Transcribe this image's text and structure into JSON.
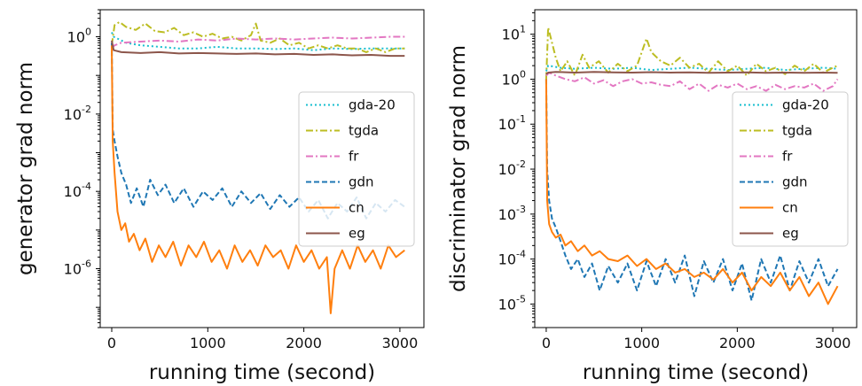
{
  "chart_data": [
    {
      "type": "line",
      "xlabel": "running time (second)",
      "ylabel": "generator grad norm",
      "yscale": "log",
      "xlim": [
        -120,
        3250
      ],
      "ylim": [
        3e-08,
        5
      ],
      "xticks": [
        0,
        1000,
        2000,
        3000
      ],
      "xtick_labels": [
        "0",
        "1000",
        "2000",
        "3000"
      ],
      "yticks": [
        1e-06,
        0.0001,
        0.01,
        1
      ],
      "ytick_labels": [
        [
          "10",
          "-6"
        ],
        [
          "10",
          "-4"
        ],
        [
          "10",
          "-2"
        ],
        [
          "10",
          "0"
        ]
      ],
      "legend_position": "center-right",
      "grid": false,
      "series": [
        {
          "name": "gda-20",
          "color": "#17becf",
          "dash": "2,3",
          "x": [
            0,
            20,
            150,
            300,
            500,
            700,
            900,
            1100,
            1300,
            1500,
            1700,
            1900,
            2100,
            2300,
            2500,
            2700,
            2900,
            3050
          ],
          "y": [
            1.3,
            1.0,
            0.7,
            0.6,
            0.55,
            0.5,
            0.5,
            0.55,
            0.5,
            0.5,
            0.48,
            0.5,
            0.45,
            0.5,
            0.48,
            0.5,
            0.5,
            0.5
          ]
        },
        {
          "name": "tgda",
          "color": "#bcbd22",
          "dash": "8,3,2,3",
          "x": [
            0,
            30,
            80,
            150,
            250,
            350,
            450,
            550,
            650,
            750,
            850,
            950,
            1050,
            1150,
            1250,
            1350,
            1450,
            1500,
            1550,
            1650,
            1750,
            1850,
            1950,
            2050,
            2150,
            2250,
            2350,
            2450,
            2550,
            2650,
            2750,
            2850,
            2950,
            3050
          ],
          "y": [
            0.6,
            2.0,
            2.4,
            1.8,
            1.5,
            2.2,
            1.4,
            1.3,
            1.7,
            1.1,
            1.3,
            1.0,
            1.2,
            0.9,
            1.0,
            0.8,
            1.1,
            2.2,
            0.8,
            0.7,
            0.9,
            0.6,
            0.7,
            0.5,
            0.6,
            0.5,
            0.6,
            0.5,
            0.5,
            0.4,
            0.5,
            0.4,
            0.5,
            0.5
          ]
        },
        {
          "name": "fr",
          "color": "#e377c2",
          "dash": "8,3,2,3",
          "x": [
            0,
            30,
            100,
            300,
            500,
            700,
            900,
            1100,
            1300,
            1500,
            1700,
            1900,
            2100,
            2300,
            2500,
            2700,
            2900,
            3050
          ],
          "y": [
            0.5,
            0.6,
            0.7,
            0.75,
            0.8,
            0.75,
            0.85,
            0.8,
            0.9,
            0.85,
            0.9,
            0.85,
            0.9,
            0.95,
            0.9,
            0.95,
            1.0,
            1.0
          ]
        },
        {
          "name": "gdn",
          "color": "#1f77b4",
          "dash": "6,3",
          "x": [
            0,
            10,
            30,
            60,
            100,
            150,
            200,
            260,
            330,
            400,
            480,
            560,
            650,
            750,
            850,
            950,
            1050,
            1150,
            1250,
            1350,
            1450,
            1550,
            1650,
            1750,
            1850,
            1950,
            2050,
            2150,
            2250,
            2350,
            2450,
            2550,
            2650,
            2750,
            2850,
            2950,
            3050
          ],
          "y": [
            0.7,
            0.004,
            0.002,
            0.0008,
            0.0003,
            0.00015,
            5e-05,
            0.00012,
            4e-05,
            0.0002,
            8e-05,
            0.00015,
            5e-05,
            0.00012,
            4e-05,
            0.0001,
            6e-05,
            0.00012,
            4e-05,
            0.0001,
            5e-05,
            9e-05,
            3.5e-05,
            8e-05,
            4e-05,
            7e-05,
            3e-05,
            6e-05,
            2e-05,
            5e-05,
            3e-05,
            7e-05,
            2e-05,
            5e-05,
            3e-05,
            6e-05,
            4e-05
          ]
        },
        {
          "name": "cn",
          "color": "#ff7f0e",
          "dash": "",
          "x": [
            0,
            10,
            30,
            60,
            100,
            140,
            180,
            230,
            290,
            350,
            420,
            490,
            560,
            640,
            720,
            800,
            880,
            960,
            1040,
            1120,
            1200,
            1280,
            1360,
            1440,
            1520,
            1600,
            1680,
            1760,
            1840,
            1920,
            2000,
            2080,
            2160,
            2240,
            2280,
            2320,
            2400,
            2480,
            2560,
            2640,
            2720,
            2800,
            2880,
            2960,
            3050
          ],
          "y": [
            0.6,
            0.002,
            0.0003,
            3e-05,
            1e-05,
            1.5e-05,
            5e-06,
            8e-06,
            3e-06,
            6e-06,
            1.5e-06,
            4e-06,
            2e-06,
            5e-06,
            1.2e-06,
            4e-06,
            2e-06,
            5e-06,
            1.5e-06,
            3e-06,
            1e-06,
            4e-06,
            1.5e-06,
            3e-06,
            1.2e-06,
            4e-06,
            2e-06,
            3e-06,
            1e-06,
            4e-06,
            1.5e-06,
            3e-06,
            1e-06,
            2e-06,
            7e-08,
            1e-06,
            3e-06,
            1e-06,
            4e-06,
            1.5e-06,
            3e-06,
            1e-06,
            4e-06,
            2e-06,
            3e-06
          ]
        },
        {
          "name": "eg",
          "color": "#8c564b",
          "dash": "",
          "x": [
            0,
            20,
            100,
            300,
            500,
            700,
            900,
            1100,
            1300,
            1500,
            1700,
            1900,
            2100,
            2300,
            2500,
            2700,
            2900,
            3050
          ],
          "y": [
            0.8,
            0.45,
            0.4,
            0.38,
            0.4,
            0.37,
            0.38,
            0.37,
            0.36,
            0.37,
            0.35,
            0.36,
            0.34,
            0.35,
            0.33,
            0.34,
            0.32,
            0.32
          ]
        }
      ]
    },
    {
      "type": "line",
      "xlabel": "running time (second)",
      "ylabel": "discriminator grad norm",
      "yscale": "log",
      "xlim": [
        -120,
        3250
      ],
      "ylim": [
        3e-06,
        35
      ],
      "xticks": [
        0,
        1000,
        2000,
        3000
      ],
      "xtick_labels": [
        "0",
        "1000",
        "2000",
        "3000"
      ],
      "yticks": [
        1e-05,
        0.0001,
        0.001,
        0.01,
        0.1,
        1,
        10
      ],
      "ytick_labels": [
        [
          "10",
          "-5"
        ],
        [
          "10",
          "-4"
        ],
        [
          "10",
          "-3"
        ],
        [
          "10",
          "-2"
        ],
        [
          "10",
          "-1"
        ],
        [
          "10",
          "0"
        ],
        [
          "10",
          "1"
        ]
      ],
      "legend_position": "center-right",
      "grid": false,
      "series": [
        {
          "name": "gda-20",
          "color": "#17becf",
          "dash": "2,3",
          "x": [
            0,
            20,
            150,
            300,
            500,
            700,
            900,
            1100,
            1300,
            1500,
            1700,
            1900,
            2100,
            2300,
            2500,
            2700,
            2900,
            3050
          ],
          "y": [
            1.5,
            2.0,
            1.8,
            1.7,
            1.8,
            1.7,
            1.8,
            1.6,
            1.7,
            1.8,
            1.7,
            1.6,
            1.7,
            1.8,
            1.6,
            1.7,
            1.8,
            1.7
          ]
        },
        {
          "name": "tgda",
          "color": "#bcbd22",
          "dash": "8,3,2,3",
          "x": [
            0,
            20,
            50,
            100,
            150,
            220,
            300,
            380,
            450,
            550,
            650,
            750,
            850,
            950,
            1050,
            1100,
            1200,
            1300,
            1400,
            1500,
            1600,
            1700,
            1800,
            1900,
            2000,
            2100,
            2200,
            2300,
            2400,
            2500,
            2600,
            2700,
            2800,
            2900,
            3000,
            3050
          ],
          "y": [
            1.0,
            14,
            8,
            3.0,
            1.5,
            2.5,
            1.2,
            3.5,
            1.8,
            2.5,
            1.4,
            2.2,
            1.5,
            2.0,
            8,
            4,
            2.5,
            2.0,
            3.0,
            1.8,
            2.2,
            1.4,
            2.5,
            1.5,
            2.0,
            1.2,
            2.2,
            1.5,
            1.8,
            1.3,
            2.0,
            1.5,
            2.2,
            1.4,
            1.8,
            2.0
          ]
        },
        {
          "name": "fr",
          "color": "#e377c2",
          "dash": "8,3,2,3",
          "x": [
            0,
            30,
            100,
            200,
            300,
            400,
            500,
            600,
            700,
            800,
            900,
            1000,
            1100,
            1200,
            1300,
            1400,
            1500,
            1600,
            1700,
            1800,
            1900,
            2000,
            2100,
            2200,
            2300,
            2400,
            2500,
            2600,
            2700,
            2800,
            2900,
            3000,
            3050
          ],
          "y": [
            1.2,
            1.4,
            1.2,
            1.0,
            0.9,
            1.1,
            0.8,
            0.95,
            0.7,
            0.9,
            1.0,
            0.8,
            0.85,
            0.75,
            0.7,
            0.9,
            0.6,
            0.8,
            0.55,
            0.75,
            0.65,
            0.8,
            0.6,
            0.7,
            0.55,
            0.75,
            0.6,
            0.7,
            0.65,
            0.8,
            0.55,
            0.7,
            1.0
          ]
        },
        {
          "name": "gdn",
          "color": "#1f77b4",
          "dash": "6,3",
          "x": [
            0,
            10,
            30,
            60,
            100,
            150,
            200,
            260,
            330,
            400,
            480,
            560,
            650,
            750,
            850,
            950,
            1050,
            1150,
            1250,
            1350,
            1450,
            1550,
            1650,
            1750,
            1850,
            1950,
            2050,
            2150,
            2250,
            2350,
            2450,
            2550,
            2650,
            2750,
            2850,
            2950,
            3050
          ],
          "y": [
            1.0,
            0.01,
            0.002,
            0.0008,
            0.0005,
            0.00025,
            0.00012,
            6e-05,
            0.0001,
            4e-05,
            8e-05,
            2e-05,
            7e-05,
            3e-05,
            8e-05,
            2e-05,
            9e-05,
            2.5e-05,
            0.0001,
            3e-05,
            0.00012,
            1.5e-05,
            9e-05,
            3e-05,
            0.0001,
            2e-05,
            8e-05,
            1.2e-05,
            0.0001,
            3e-05,
            0.00012,
            2e-05,
            9e-05,
            3e-05,
            0.0001,
            2.5e-05,
            6e-05
          ]
        },
        {
          "name": "cn",
          "color": "#ff7f0e",
          "dash": "",
          "x": [
            0,
            10,
            30,
            60,
            100,
            150,
            200,
            260,
            330,
            400,
            480,
            560,
            650,
            750,
            850,
            950,
            1050,
            1150,
            1250,
            1350,
            1450,
            1550,
            1650,
            1750,
            1850,
            1950,
            2050,
            2150,
            2250,
            2350,
            2450,
            2550,
            2650,
            2750,
            2850,
            2950,
            3050
          ],
          "y": [
            1.0,
            0.002,
            0.0006,
            0.0004,
            0.0003,
            0.00035,
            0.0002,
            0.00025,
            0.00015,
            0.0002,
            0.00012,
            0.00015,
            0.0001,
            9e-05,
            0.00012,
            7e-05,
            0.0001,
            6e-05,
            8e-05,
            5e-05,
            6e-05,
            4e-05,
            5e-05,
            3.5e-05,
            6e-05,
            3e-05,
            5e-05,
            2e-05,
            4e-05,
            2.5e-05,
            5e-05,
            2e-05,
            4e-05,
            1.5e-05,
            3e-05,
            1e-05,
            2.5e-05
          ]
        },
        {
          "name": "eg",
          "color": "#8c564b",
          "dash": "",
          "x": [
            0,
            20,
            100,
            300,
            500,
            700,
            900,
            1100,
            1300,
            1500,
            1700,
            1900,
            2100,
            2300,
            2500,
            2700,
            2900,
            3050
          ],
          "y": [
            1.3,
            1.4,
            1.45,
            1.4,
            1.45,
            1.42,
            1.4,
            1.43,
            1.4,
            1.42,
            1.38,
            1.4,
            1.42,
            1.39,
            1.4,
            1.38,
            1.4,
            1.38
          ]
        }
      ]
    }
  ]
}
